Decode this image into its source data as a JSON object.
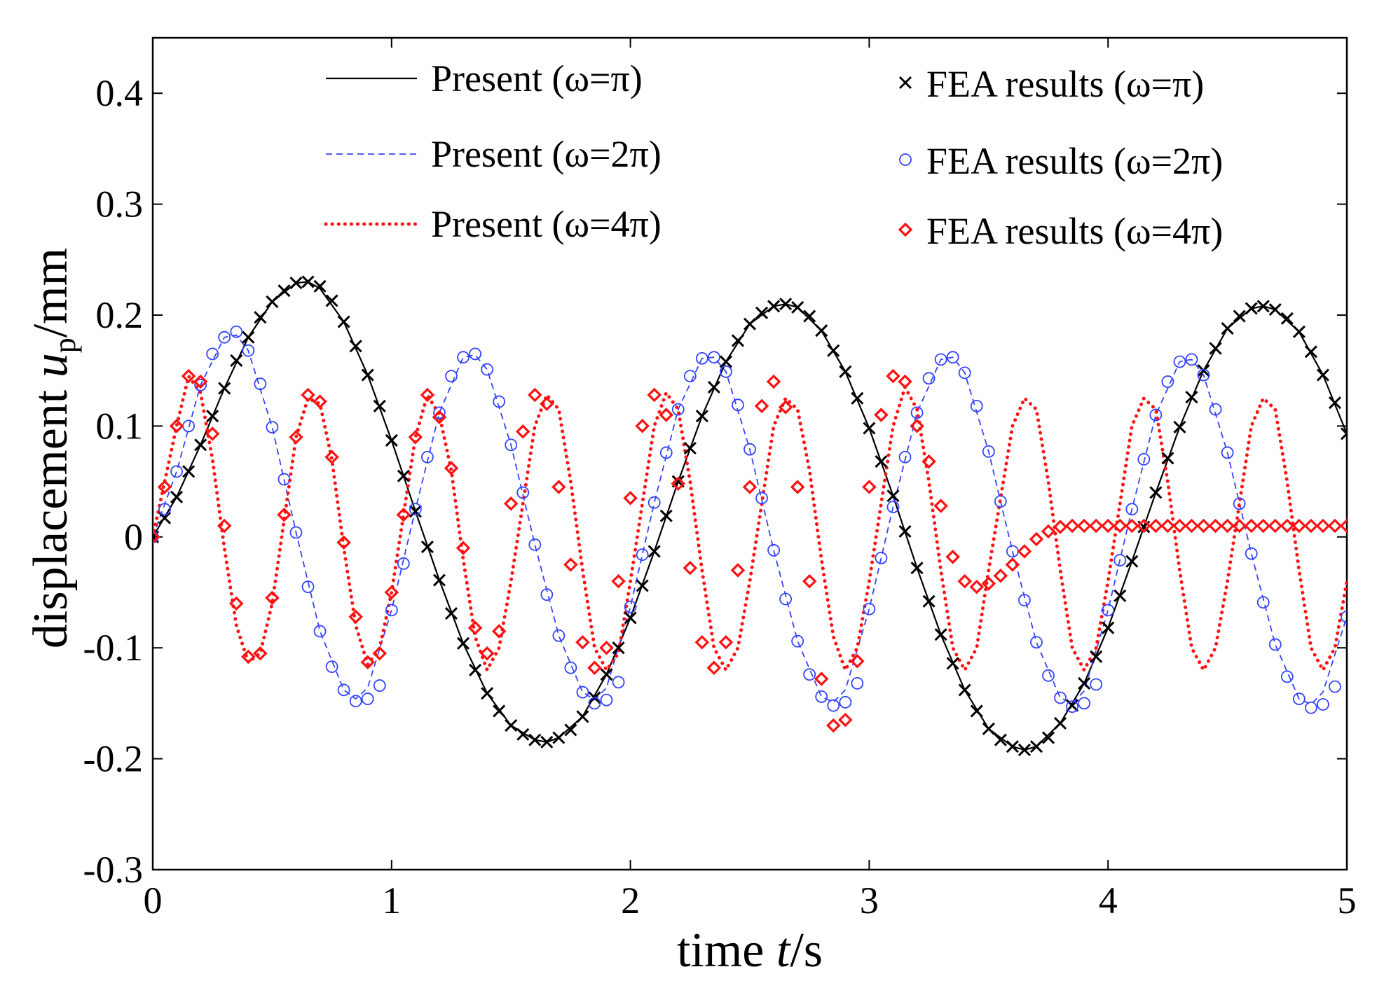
{
  "chart_data": {
    "type": "line",
    "xlabel": "time t/s",
    "ylabel": "displacement u_p/mm",
    "xlabel_parts": {
      "prefix": "time ",
      "var": "t",
      "suffix": "/s"
    },
    "ylabel_parts": {
      "prefix": "displacement ",
      "var": "u",
      "sub": "p",
      "suffix": "/mm"
    },
    "xlim": [
      0,
      5
    ],
    "ylim": [
      -0.3,
      0.45
    ],
    "xticks": [
      0,
      1,
      2,
      3,
      4,
      5
    ],
    "xtick_labels": [
      "0",
      "1",
      "2",
      "3",
      "4",
      "5"
    ],
    "yticks": [
      -0.3,
      -0.2,
      -0.1,
      0,
      0.1,
      0.2,
      0.3,
      0.4
    ],
    "ytick_labels": [
      "-0.3",
      "-0.2",
      "-0.1",
      "0",
      "0.1",
      "0.2",
      "0.3",
      "0.4"
    ],
    "grid": false,
    "legend_position": "top",
    "legend": {
      "lines": [
        "Present (ω=π)",
        "Present (ω=2π)",
        "Present (ω=4π)"
      ],
      "markers": [
        "FEA results (ω=π)",
        "FEA results (ω=2π)",
        "FEA results (ω=4π)"
      ]
    },
    "series": [
      {
        "name": "Present (ω=π)",
        "style": "solid",
        "color": "#000000",
        "marker": "none",
        "x": [
          0.0,
          0.1,
          0.2,
          0.3,
          0.4,
          0.5,
          0.6,
          0.65,
          0.7,
          0.8,
          0.9,
          1.0,
          1.1,
          1.2,
          1.3,
          1.4,
          1.5,
          1.6,
          1.65,
          1.7,
          1.8,
          1.9,
          2.0,
          2.1,
          2.2,
          2.3,
          2.4,
          2.5,
          2.6,
          2.65,
          2.7,
          2.8,
          2.9,
          3.0,
          3.1,
          3.2,
          3.3,
          3.4,
          3.5,
          3.6,
          3.65,
          3.7,
          3.8,
          3.9,
          4.0,
          4.1,
          4.2,
          4.3,
          4.4,
          4.5,
          4.6,
          4.65,
          4.7,
          4.8,
          4.9,
          5.0
        ],
        "y": [
          0.0,
          0.036,
          0.083,
          0.134,
          0.18,
          0.212,
          0.229,
          0.23,
          0.224,
          0.194,
          0.146,
          0.087,
          0.023,
          -0.039,
          -0.096,
          -0.141,
          -0.17,
          -0.183,
          -0.185,
          -0.181,
          -0.162,
          -0.124,
          -0.073,
          -0.013,
          0.05,
          0.109,
          0.158,
          0.192,
          0.208,
          0.21,
          0.207,
          0.186,
          0.149,
          0.098,
          0.037,
          -0.028,
          -0.088,
          -0.138,
          -0.173,
          -0.189,
          -0.192,
          -0.189,
          -0.168,
          -0.132,
          -0.082,
          -0.022,
          0.04,
          0.099,
          0.15,
          0.188,
          0.206,
          0.208,
          0.205,
          0.185,
          0.146,
          0.093
        ]
      },
      {
        "name": "Present (ω=2π)",
        "style": "dashed",
        "color": "#3344ff",
        "marker": "none",
        "x": [
          0.0,
          0.1,
          0.2,
          0.3,
          0.35,
          0.4,
          0.5,
          0.6,
          0.7,
          0.8,
          0.85,
          0.9,
          1.0,
          1.1,
          1.2,
          1.3,
          1.35,
          1.4,
          1.5,
          1.6,
          1.7,
          1.8,
          1.85,
          1.9,
          2.0,
          2.1,
          2.2,
          2.3,
          2.35,
          2.4,
          2.5,
          2.6,
          2.7,
          2.8,
          2.85,
          2.9,
          3.0,
          3.1,
          3.2,
          3.3,
          3.35,
          3.4,
          3.5,
          3.6,
          3.7,
          3.8,
          3.85,
          3.9,
          4.0,
          4.1,
          4.2,
          4.3,
          4.35,
          4.4,
          4.5,
          4.6,
          4.7,
          4.8,
          4.85,
          4.9,
          5.0
        ],
        "y": [
          0.0,
          0.059,
          0.137,
          0.18,
          0.182,
          0.168,
          0.099,
          0.004,
          -0.085,
          -0.138,
          -0.146,
          -0.136,
          -0.066,
          0.025,
          0.112,
          0.162,
          0.164,
          0.151,
          0.083,
          -0.007,
          -0.089,
          -0.14,
          -0.147,
          -0.136,
          -0.063,
          0.031,
          0.115,
          0.161,
          0.162,
          0.149,
          0.079,
          -0.012,
          -0.094,
          -0.144,
          -0.149,
          -0.138,
          -0.065,
          0.027,
          0.112,
          0.16,
          0.162,
          0.148,
          0.077,
          -0.013,
          -0.095,
          -0.145,
          -0.15,
          -0.139,
          -0.066,
          0.025,
          0.11,
          0.158,
          0.16,
          0.146,
          0.076,
          -0.015,
          -0.097,
          -0.146,
          -0.151,
          -0.14,
          -0.072
        ]
      },
      {
        "name": "Present (ω=4π)",
        "style": "dotted",
        "color": "#ff1111",
        "marker": "none",
        "x": [
          0.0,
          0.1,
          0.15,
          0.2,
          0.25,
          0.3,
          0.35,
          0.4,
          0.45,
          0.5,
          0.6,
          0.65,
          0.7,
          0.75,
          0.8,
          0.85,
          0.9,
          0.95,
          1.0,
          1.1,
          1.15,
          1.2,
          1.25,
          1.3,
          1.35,
          1.4,
          1.45,
          1.5,
          1.6,
          1.65,
          1.7,
          1.75,
          1.8,
          1.85,
          1.9,
          1.95,
          2.0,
          2.1,
          2.15,
          2.2,
          2.25,
          2.3,
          2.35,
          2.4,
          2.45,
          2.5,
          2.6,
          2.65,
          2.7,
          2.75,
          2.8,
          2.85,
          2.9,
          2.95,
          3.0,
          3.1,
          3.15,
          3.2,
          3.25,
          3.3,
          3.35,
          3.4,
          3.45,
          3.5,
          3.6,
          3.65,
          3.7,
          3.75,
          3.8,
          3.85,
          3.9,
          3.95,
          4.0,
          4.1,
          4.15,
          4.2,
          4.25,
          4.3,
          4.35,
          4.4,
          4.45,
          4.5,
          4.6,
          4.65,
          4.7,
          4.75,
          4.8,
          4.85,
          4.9,
          4.95,
          5.0
        ],
        "y": [
          0.0,
          0.1,
          0.145,
          0.13,
          0.07,
          -0.01,
          -0.08,
          -0.113,
          -0.105,
          -0.06,
          0.09,
          0.125,
          0.12,
          0.07,
          -0.01,
          -0.08,
          -0.115,
          -0.1,
          -0.05,
          0.09,
          0.128,
          0.11,
          0.06,
          -0.02,
          -0.09,
          -0.12,
          -0.1,
          -0.04,
          0.1,
          0.128,
          0.115,
          0.05,
          -0.03,
          -0.1,
          -0.12,
          -0.105,
          -0.04,
          0.1,
          0.13,
          0.115,
          0.05,
          -0.03,
          -0.1,
          -0.12,
          -0.1,
          -0.04,
          0.1,
          0.125,
          0.115,
          0.06,
          -0.02,
          -0.09,
          -0.12,
          -0.1,
          -0.04,
          0.1,
          0.135,
          0.115,
          0.05,
          -0.03,
          -0.1,
          -0.12,
          -0.1,
          -0.03,
          0.1,
          0.125,
          0.115,
          0.05,
          -0.03,
          -0.1,
          -0.12,
          -0.1,
          -0.04,
          0.1,
          0.125,
          0.115,
          0.05,
          -0.03,
          -0.1,
          -0.12,
          -0.1,
          -0.04,
          0.1,
          0.125,
          0.115,
          0.05,
          -0.03,
          -0.1,
          -0.12,
          -0.1,
          -0.04
        ]
      },
      {
        "name": "FEA results (ω=π)",
        "style": "none",
        "color": "#000000",
        "marker": "x",
        "x": [
          0.0,
          0.05,
          0.1,
          0.15,
          0.2,
          0.25,
          0.3,
          0.35,
          0.4,
          0.45,
          0.5,
          0.55,
          0.6,
          0.65,
          0.7,
          0.75,
          0.8,
          0.85,
          0.9,
          0.95,
          1.0,
          1.05,
          1.1,
          1.15,
          1.2,
          1.25,
          1.3,
          1.35,
          1.4,
          1.45,
          1.5,
          1.55,
          1.6,
          1.65,
          1.7,
          1.75,
          1.8,
          1.85,
          1.9,
          1.95,
          2.0,
          2.05,
          2.1,
          2.15,
          2.2,
          2.25,
          2.3,
          2.35,
          2.4,
          2.45,
          2.5,
          2.55,
          2.6,
          2.65,
          2.7,
          2.75,
          2.8,
          2.85,
          2.9,
          2.95,
          3.0,
          3.05,
          3.1,
          3.15,
          3.2,
          3.25,
          3.3,
          3.35,
          3.4,
          3.45,
          3.5,
          3.55,
          3.6,
          3.65,
          3.7,
          3.75,
          3.8,
          3.85,
          3.9,
          3.95,
          4.0,
          4.05,
          4.1,
          4.15,
          4.2,
          4.25,
          4.3,
          4.35,
          4.4,
          4.45,
          4.5,
          4.55,
          4.6,
          4.65,
          4.7,
          4.75,
          4.8,
          4.85,
          4.9,
          4.95,
          5.0
        ],
        "y": [
          0.0,
          0.017,
          0.036,
          0.059,
          0.083,
          0.109,
          0.134,
          0.159,
          0.18,
          0.198,
          0.212,
          0.222,
          0.229,
          0.23,
          0.226,
          0.213,
          0.194,
          0.172,
          0.146,
          0.118,
          0.087,
          0.055,
          0.023,
          -0.009,
          -0.039,
          -0.069,
          -0.096,
          -0.12,
          -0.141,
          -0.157,
          -0.17,
          -0.178,
          -0.183,
          -0.185,
          -0.181,
          -0.174,
          -0.162,
          -0.145,
          -0.124,
          -0.1,
          -0.073,
          -0.044,
          -0.013,
          0.019,
          0.05,
          0.08,
          0.109,
          0.135,
          0.158,
          0.177,
          0.192,
          0.202,
          0.208,
          0.21,
          0.207,
          0.199,
          0.186,
          0.168,
          0.149,
          0.125,
          0.098,
          0.068,
          0.037,
          0.005,
          -0.028,
          -0.058,
          -0.088,
          -0.114,
          -0.138,
          -0.157,
          -0.173,
          -0.183,
          -0.189,
          -0.192,
          -0.189,
          -0.181,
          -0.168,
          -0.152,
          -0.132,
          -0.108,
          -0.082,
          -0.053,
          -0.022,
          0.009,
          0.04,
          0.071,
          0.099,
          0.126,
          0.15,
          0.17,
          0.188,
          0.199,
          0.206,
          0.208,
          0.205,
          0.197,
          0.185,
          0.167,
          0.146,
          0.121,
          0.093
        ]
      },
      {
        "name": "FEA results (ω=2π)",
        "style": "none",
        "color": "#3344ff",
        "marker": "o",
        "x": [
          0.0,
          0.05,
          0.1,
          0.15,
          0.2,
          0.25,
          0.3,
          0.35,
          0.4,
          0.45,
          0.5,
          0.55,
          0.6,
          0.65,
          0.7,
          0.75,
          0.8,
          0.85,
          0.9,
          0.95,
          1.0,
          1.05,
          1.1,
          1.15,
          1.2,
          1.25,
          1.3,
          1.35,
          1.4,
          1.45,
          1.5,
          1.55,
          1.6,
          1.65,
          1.7,
          1.75,
          1.8,
          1.85,
          1.9,
          1.95,
          2.0,
          2.05,
          2.1,
          2.15,
          2.2,
          2.25,
          2.3,
          2.35,
          2.4,
          2.45,
          2.5,
          2.55,
          2.6,
          2.65,
          2.7,
          2.75,
          2.8,
          2.85,
          2.9,
          2.95,
          3.0,
          3.05,
          3.1,
          3.15,
          3.2,
          3.25,
          3.3,
          3.35,
          3.4,
          3.45,
          3.5,
          3.55,
          3.6,
          3.65,
          3.7,
          3.75,
          3.8,
          3.85,
          3.9,
          3.95,
          4.0,
          4.05,
          4.1,
          4.15,
          4.2,
          4.25,
          4.3,
          4.35,
          4.4,
          4.45,
          4.5,
          4.55,
          4.6,
          4.65,
          4.7,
          4.75,
          4.8,
          4.85,
          4.9,
          4.95,
          5.0
        ],
        "y": [
          0.0,
          0.025,
          0.059,
          0.1,
          0.137,
          0.165,
          0.18,
          0.185,
          0.168,
          0.138,
          0.099,
          0.052,
          0.004,
          -0.045,
          -0.085,
          -0.117,
          -0.138,
          -0.148,
          -0.146,
          -0.134,
          -0.066,
          -0.024,
          0.025,
          0.072,
          0.112,
          0.145,
          0.162,
          0.165,
          0.151,
          0.122,
          0.083,
          0.04,
          -0.007,
          -0.052,
          -0.089,
          -0.118,
          -0.14,
          -0.15,
          -0.147,
          -0.131,
          -0.063,
          -0.016,
          0.031,
          0.076,
          0.115,
          0.145,
          0.161,
          0.162,
          0.149,
          0.119,
          0.079,
          0.035,
          -0.012,
          -0.056,
          -0.094,
          -0.124,
          -0.144,
          -0.152,
          -0.149,
          -0.132,
          -0.065,
          -0.019,
          0.027,
          0.072,
          0.112,
          0.143,
          0.16,
          0.162,
          0.148,
          0.118,
          0.077,
          0.032,
          -0.013,
          -0.057,
          -0.095,
          -0.125,
          -0.145,
          -0.153,
          -0.15,
          -0.133,
          -0.066,
          -0.021,
          0.025,
          0.07,
          0.11,
          0.14,
          0.158,
          0.16,
          0.146,
          0.115,
          0.076,
          0.03,
          -0.015,
          -0.059,
          -0.097,
          -0.126,
          -0.146,
          -0.154,
          -0.151,
          -0.135,
          -0.072
        ]
      },
      {
        "name": "FEA results (ω=4π)",
        "style": "none",
        "color": "#ff1111",
        "marker": "diamond",
        "x": [
          0.0,
          0.05,
          0.1,
          0.15,
          0.2,
          0.25,
          0.3,
          0.35,
          0.4,
          0.45,
          0.5,
          0.55,
          0.6,
          0.65,
          0.7,
          0.75,
          0.8,
          0.85,
          0.9,
          0.95,
          1.0,
          1.05,
          1.1,
          1.15,
          1.2,
          1.25,
          1.3,
          1.35,
          1.4,
          1.45,
          1.5,
          1.55,
          1.6,
          1.65,
          1.7,
          1.75,
          1.8,
          1.85,
          1.9,
          1.95,
          2.0,
          2.05,
          2.1,
          2.15,
          2.2,
          2.25,
          2.3,
          2.35,
          2.4,
          2.45,
          2.5,
          2.55,
          2.6,
          2.65,
          2.7,
          2.75,
          2.8,
          2.85,
          2.9,
          2.95,
          3.0,
          3.05,
          3.1,
          3.15,
          3.2,
          3.25,
          3.3,
          3.35,
          3.4,
          3.45,
          3.5,
          3.55,
          3.6,
          3.65,
          3.7,
          3.75,
          3.8,
          3.85,
          3.9,
          3.95,
          4.0,
          4.05,
          4.1,
          4.15,
          4.2,
          4.25,
          4.3,
          4.35,
          4.4,
          4.45,
          4.5,
          4.55,
          4.6,
          4.65,
          4.7,
          4.75,
          4.8,
          4.85,
          4.9,
          4.95,
          5.0
        ],
        "y": [
          0.0,
          0.045,
          0.1,
          0.145,
          0.14,
          0.093,
          0.01,
          -0.06,
          -0.108,
          -0.105,
          -0.055,
          0.02,
          0.09,
          0.128,
          0.122,
          0.072,
          -0.005,
          -0.072,
          -0.113,
          -0.105,
          -0.05,
          0.02,
          0.09,
          0.128,
          0.108,
          0.062,
          -0.01,
          -0.082,
          -0.105,
          -0.085,
          0.03,
          0.095,
          0.128,
          0.12,
          0.045,
          -0.025,
          -0.095,
          -0.118,
          -0.1,
          -0.04,
          0.035,
          0.1,
          0.128,
          0.11,
          0.048,
          -0.028,
          -0.095,
          -0.118,
          -0.095,
          -0.03,
          0.045,
          0.118,
          0.14,
          0.117,
          0.045,
          -0.04,
          -0.128,
          -0.17,
          -0.165,
          -0.112,
          0.045,
          0.11,
          0.145,
          0.14,
          0.1,
          0.068,
          0.028,
          -0.018,
          -0.04,
          -0.045,
          -0.042,
          -0.035,
          -0.025,
          -0.013,
          -0.002,
          0.005,
          0.009,
          0.01,
          0.01,
          0.01,
          0.01,
          0.01,
          0.01,
          0.01,
          0.01,
          0.01,
          0.01,
          0.01,
          0.01,
          0.01,
          0.01,
          0.01,
          0.01,
          0.01,
          0.01,
          0.01,
          0.01,
          0.01,
          0.01,
          0.01,
          0.01
        ]
      }
    ]
  }
}
